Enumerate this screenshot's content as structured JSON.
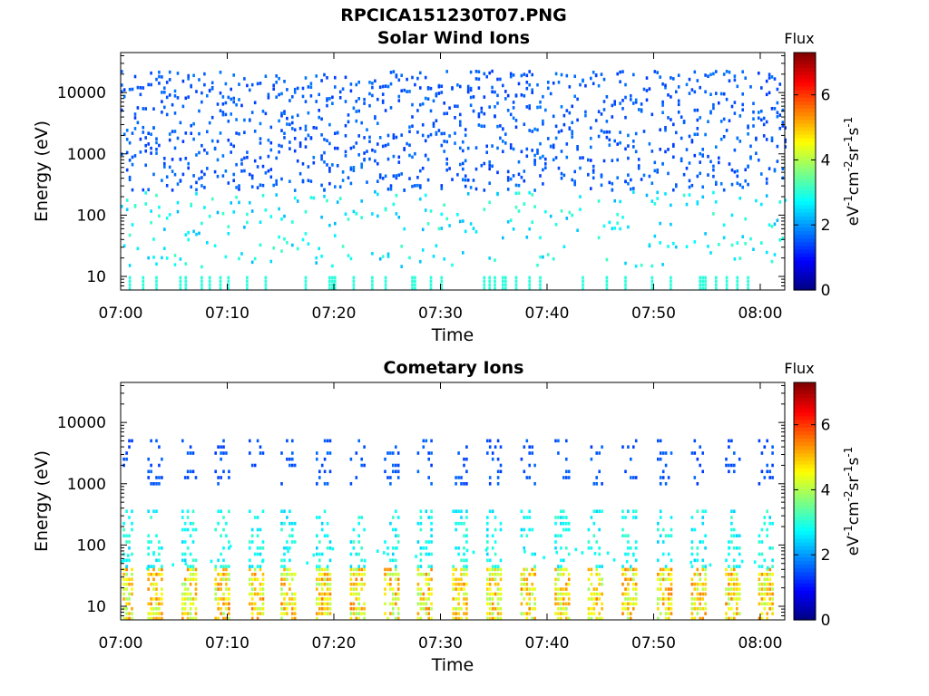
{
  "figure_title": "RPCICA151230T07.PNG",
  "chart_data": [
    {
      "type": "heatmap",
      "title": "Solar Wind Ions",
      "xlabel": "Time",
      "ylabel": "Energy (eV)",
      "x_ticks": [
        "07:00",
        "07:10",
        "07:20",
        "07:30",
        "07:40",
        "07:50",
        "08:00"
      ],
      "y_ticks": [
        "10",
        "100",
        "1000",
        "10000"
      ],
      "y_scale": "log",
      "ylim": [
        6,
        45000
      ],
      "xlim_minutes": [
        0,
        62.3
      ],
      "colorbar": {
        "title": "Flux",
        "unit": "eV-1cm-2sr-1s-1",
        "ticks": [
          "0",
          "2",
          "4",
          "6"
        ],
        "range": [
          0,
          7.3
        ],
        "colormap": "jet"
      },
      "description_of_values": "Sparse scattered counts: flux ~1.3-1.8 at 300-30000 eV, ~2-3.5 at 6-300 eV throughout 07:00-08:02"
    },
    {
      "type": "heatmap",
      "title": "Cometary Ions",
      "xlabel": "Time",
      "ylabel": "Energy (eV)",
      "x_ticks": [
        "07:00",
        "07:10",
        "07:20",
        "07:30",
        "07:40",
        "07:50",
        "08:00"
      ],
      "y_ticks": [
        "10",
        "100",
        "1000",
        "10000"
      ],
      "y_scale": "log",
      "ylim": [
        6,
        45000
      ],
      "xlim_minutes": [
        0,
        62.3
      ],
      "colorbar": {
        "title": "Flux",
        "unit": "eV-1cm-2sr-1s-1",
        "ticks": [
          "0",
          "2",
          "4",
          "6"
        ],
        "range": [
          0,
          7.3
        ],
        "colormap": "jet"
      },
      "burst_minutes": [
        0.2,
        3.0,
        6.2,
        9.3,
        12.5,
        15.5,
        18.8,
        22.0,
        25.2,
        28.3,
        31.6,
        34.8,
        38.0,
        41.2,
        44.3,
        47.5,
        50.8,
        54.0,
        57.2,
        60.3
      ],
      "description_of_values": "Periodic bursts ~every 3.2 min: flux 4-5.5 at 6-45 eV, ~2.5-3 at 45-400 eV, ~1.5 at 1000-5000 eV"
    }
  ]
}
